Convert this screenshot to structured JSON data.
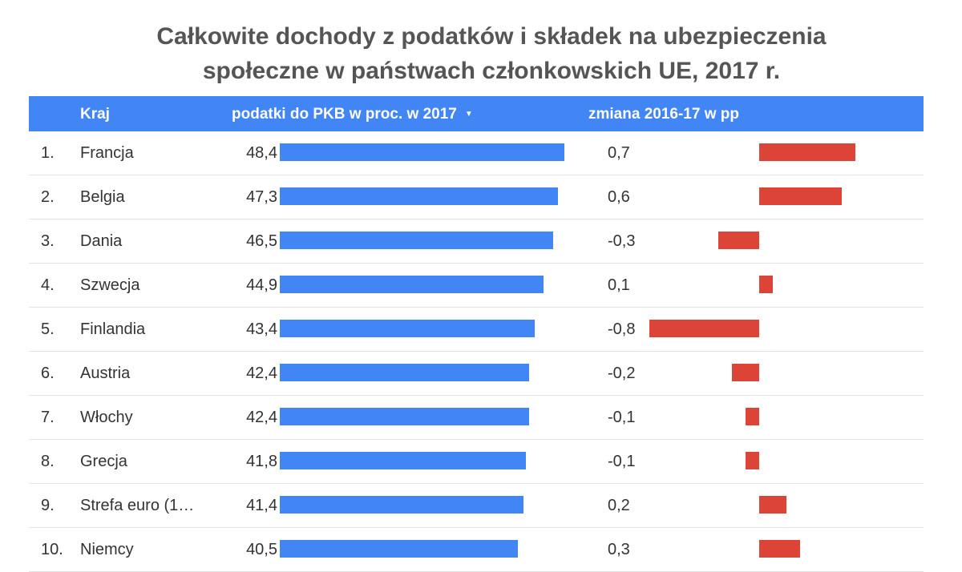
{
  "title_line1": "Całkowite dochody z podatków i składek na ubezpieczenia",
  "title_line2": "społeczne w państwach członkowskich UE, 2017 r.",
  "headers": {
    "country": "Kraj",
    "tax": "podatki do PKB w proc. w 2017",
    "change": "zmiana 2016-17 w pp"
  },
  "colors": {
    "header": "#4285f4",
    "tax_bar": "#4285f4",
    "change_bar": "#db4437"
  },
  "chart_data": {
    "type": "table",
    "columns": [
      "Kraj",
      "podatki do PKB w proc. w 2017",
      "zmiana 2016-17 w pp"
    ],
    "sort": {
      "column": "podatki do PKB w proc. w 2017",
      "order": "descending"
    },
    "rows": [
      {
        "rank": "1.",
        "country": "Francja",
        "tax_label": "48,4",
        "tax": 48.4,
        "change_label": "0,7",
        "change": 0.7
      },
      {
        "rank": "2.",
        "country": "Belgia",
        "tax_label": "47,3",
        "tax": 47.3,
        "change_label": "0,6",
        "change": 0.6
      },
      {
        "rank": "3.",
        "country": "Dania",
        "tax_label": "46,5",
        "tax": 46.5,
        "change_label": "-0,3",
        "change": -0.3
      },
      {
        "rank": "4.",
        "country": "Szwecja",
        "tax_label": "44,9",
        "tax": 44.9,
        "change_label": "0,1",
        "change": 0.1
      },
      {
        "rank": "5.",
        "country": "Finlandia",
        "tax_label": "43,4",
        "tax": 43.4,
        "change_label": "-0,8",
        "change": -0.8
      },
      {
        "rank": "6.",
        "country": "Austria",
        "tax_label": "42,4",
        "tax": 42.4,
        "change_label": "-0,2",
        "change": -0.2
      },
      {
        "rank": "7.",
        "country": "Włochy",
        "tax_label": "42,4",
        "tax": 42.4,
        "change_label": "-0,1",
        "change": -0.1
      },
      {
        "rank": "8.",
        "country": "Grecja",
        "tax_label": "41,8",
        "tax": 41.8,
        "change_label": "-0,1",
        "change": -0.1
      },
      {
        "rank": "9.",
        "country": "Strefa euro (1…",
        "tax_label": "41,4",
        "tax": 41.4,
        "change_label": "0,2",
        "change": 0.2
      },
      {
        "rank": "10.",
        "country": "Niemcy",
        "tax_label": "40,5",
        "tax": 40.5,
        "change_label": "0,3",
        "change": 0.3
      }
    ]
  }
}
